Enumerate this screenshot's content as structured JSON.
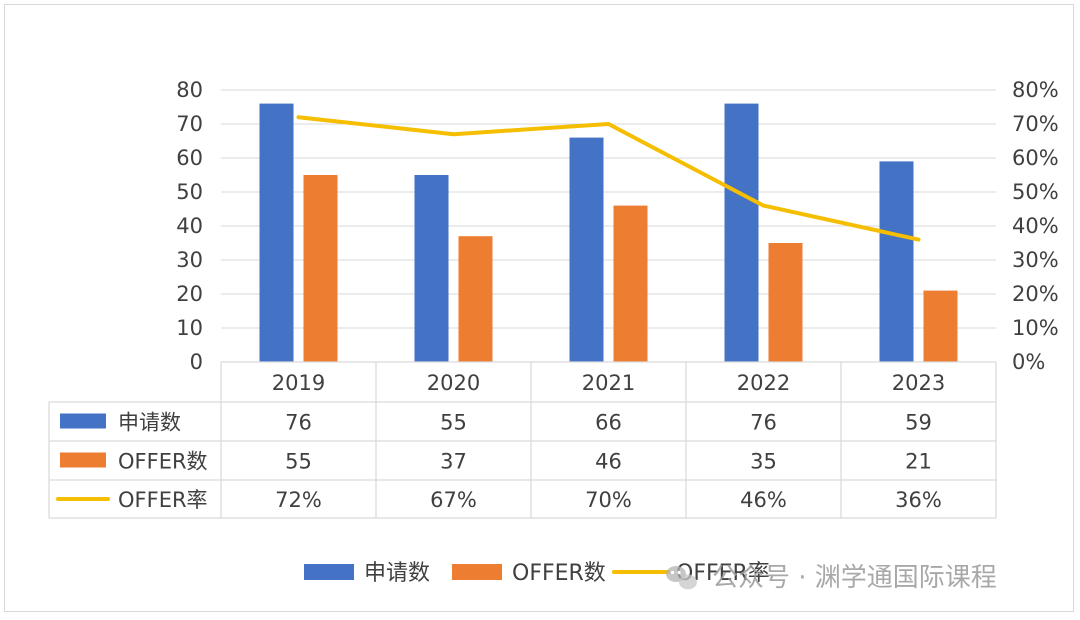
{
  "chart_data": {
    "type": "bar",
    "categories": [
      "2019",
      "2020",
      "2021",
      "2022",
      "2023"
    ],
    "series": [
      {
        "name": "申请数",
        "kind": "bar",
        "axis": "left",
        "color": "#4472C4",
        "values": [
          76,
          55,
          66,
          76,
          59
        ]
      },
      {
        "name": "OFFER数",
        "kind": "bar",
        "axis": "left",
        "color": "#ED7D31",
        "values": [
          55,
          37,
          46,
          35,
          21
        ]
      },
      {
        "name": "OFFER率",
        "kind": "line",
        "axis": "right",
        "color": "#F5BE00",
        "values": [
          72,
          67,
          70,
          46,
          36
        ]
      }
    ],
    "table_rows": [
      [
        "76",
        "55",
        "66",
        "76",
        "59"
      ],
      [
        "55",
        "37",
        "46",
        "35",
        "21"
      ],
      [
        "72%",
        "67%",
        "70%",
        "46%",
        "36%"
      ]
    ],
    "ylim_left": [
      0,
      80
    ],
    "yticks_left": [
      "0",
      "10",
      "20",
      "30",
      "40",
      "50",
      "60",
      "70",
      "80"
    ],
    "ylim_right": [
      0,
      80
    ],
    "yticks_right": [
      "0%",
      "10%",
      "20%",
      "30%",
      "40%",
      "50%",
      "60%",
      "70%",
      "80%"
    ],
    "grid": true,
    "legend_position": "bottom",
    "data_table": true
  },
  "watermark": {
    "text": "公众号 · 渊学通国际课程",
    "icon": "wechat-icon"
  },
  "colors": {
    "grid": "#d9d9d9",
    "text": "#404040"
  }
}
